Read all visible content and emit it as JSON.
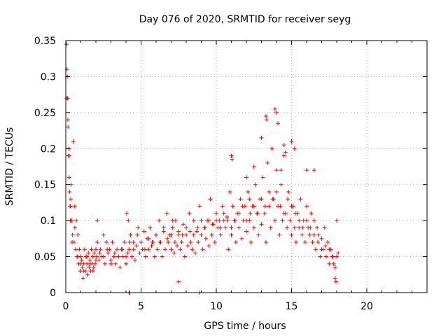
{
  "chart_data": {
    "type": "scatter",
    "title": "Day 076 of 2020, SRMTID for receiver seyg",
    "xlabel": "GPS time / hours",
    "ylabel": "SRMTID / TECUs",
    "xlim": [
      0,
      24
    ],
    "ylim": [
      0,
      0.35
    ],
    "xticks": [
      0,
      5,
      10,
      15,
      20
    ],
    "xtick_labels": [
      "0",
      "5",
      "10",
      "15",
      "20"
    ],
    "yticks": [
      0,
      0.05,
      0.1,
      0.15,
      0.2,
      0.25,
      0.3,
      0.35
    ],
    "ytick_labels": [
      "0",
      "0.05",
      "0.1",
      "0.15",
      "0.2",
      "0.25",
      "0.3",
      "0.35"
    ],
    "grid": true,
    "marker": "+",
    "series": [
      {
        "name": "seyg",
        "color": "#ff0000",
        "x": [
          0.05,
          0.08,
          0.1,
          0.12,
          0.15,
          0.18,
          0.2,
          0.22,
          0.25,
          0.28,
          0.3,
          0.33,
          0.35,
          0.4,
          0.45,
          0.5,
          0.55,
          0.6,
          0.65,
          0.7,
          0.75,
          0.8,
          0.85,
          0.9,
          0.95,
          1.0,
          1.05,
          1.1,
          1.15,
          1.2,
          1.25,
          1.3,
          1.35,
          1.4,
          1.45,
          1.5,
          1.55,
          1.6,
          1.65,
          1.7,
          1.75,
          1.8,
          1.85,
          1.9,
          1.95,
          2.0,
          2.05,
          2.1,
          2.2,
          2.3,
          2.4,
          2.5,
          2.6,
          2.7,
          2.8,
          2.9,
          3.0,
          3.1,
          3.2,
          3.3,
          3.4,
          3.5,
          3.6,
          3.7,
          3.8,
          3.9,
          4.0,
          4.1,
          4.15,
          4.2,
          4.3,
          4.4,
          4.5,
          4.6,
          4.7,
          4.8,
          4.9,
          5.0,
          5.1,
          5.2,
          5.3,
          5.4,
          5.5,
          5.6,
          5.7,
          5.8,
          5.9,
          6.0,
          6.1,
          6.2,
          6.3,
          6.4,
          6.5,
          6.6,
          6.7,
          6.8,
          6.9,
          7.0,
          7.1,
          7.2,
          7.3,
          7.4,
          7.5,
          7.6,
          7.7,
          7.8,
          7.9,
          8.0,
          8.1,
          8.2,
          8.3,
          8.4,
          8.5,
          8.6,
          8.7,
          8.8,
          8.9,
          9.0,
          9.1,
          9.2,
          9.3,
          9.4,
          9.5,
          9.6,
          9.7,
          9.8,
          9.9,
          10.0,
          10.1,
          10.2,
          10.3,
          10.4,
          10.5,
          10.6,
          10.7,
          10.8,
          10.9,
          11.0,
          11.1,
          11.2,
          11.3,
          11.4,
          11.5,
          11.6,
          11.7,
          11.8,
          11.9,
          12.0,
          12.1,
          12.2,
          12.3,
          12.4,
          12.5,
          12.6,
          12.7,
          12.8,
          12.9,
          13.0,
          13.1,
          13.2,
          13.3,
          13.4,
          13.5,
          13.6,
          13.7,
          13.8,
          13.9,
          14.0,
          14.1,
          14.2,
          14.3,
          14.4,
          14.5,
          14.6,
          14.7,
          14.8,
          14.9,
          15.0,
          15.1,
          15.2,
          15.3,
          15.4,
          15.5,
          15.6,
          15.7,
          15.8,
          15.9,
          16.0,
          16.1,
          16.2,
          16.3,
          16.4,
          16.5,
          16.6,
          16.7,
          16.8,
          16.9,
          17.0,
          17.1,
          17.2,
          17.3,
          17.4,
          17.5,
          17.6,
          17.7,
          17.8,
          17.9,
          18.0,
          18.1,
          0.07,
          0.14,
          0.22,
          0.3,
          0.42,
          0.6,
          0.8,
          1.0,
          1.2,
          1.4,
          1.6,
          1.8,
          2.0,
          2.25,
          2.5,
          2.75,
          3.0,
          3.25,
          3.5,
          3.75,
          4.0,
          4.25,
          4.5,
          4.75,
          5.0,
          5.25,
          5.5,
          5.75,
          6.0,
          6.25,
          6.5,
          6.75,
          7.0,
          7.25,
          7.5,
          7.75,
          8.0,
          8.25,
          8.5,
          8.75,
          9.0,
          9.25,
          9.5,
          9.75,
          10.0,
          10.25,
          10.5,
          10.75,
          11.0,
          11.25,
          11.5,
          11.75,
          12.0,
          12.25,
          12.5,
          12.75,
          13.0,
          13.25,
          13.5,
          13.75,
          14.0,
          14.25,
          14.5,
          14.75,
          15.0,
          15.25,
          15.5,
          15.75,
          16.0,
          16.25,
          16.5,
          16.75,
          17.0,
          17.25,
          17.5,
          17.75,
          18.0,
          13.3,
          13.35,
          13.9,
          14.0,
          14.1,
          14.5,
          14.6,
          11.0,
          11.05,
          12.0,
          12.5,
          13.0,
          15.0,
          15.2,
          16.0,
          17.9,
          17.95,
          4.2,
          4.25,
          8.9,
          4.05,
          2.1,
          7.1,
          7.5,
          12.2,
          14.3,
          16.5
        ],
        "y": [
          0.345,
          0.31,
          0.3,
          0.27,
          0.23,
          0.19,
          0.2,
          0.16,
          0.14,
          0.12,
          0.1,
          0.13,
          0.15,
          0.1,
          0.08,
          0.21,
          0.07,
          0.12,
          0.06,
          0.1,
          0.05,
          0.08,
          0.04,
          0.06,
          0.03,
          0.05,
          0.045,
          0.035,
          0.02,
          0.04,
          0.06,
          0.03,
          0.05,
          0.04,
          0.025,
          0.055,
          0.035,
          0.045,
          0.03,
          0.06,
          0.04,
          0.05,
          0.035,
          0.055,
          0.04,
          0.06,
          0.05,
          0.07,
          0.045,
          0.06,
          0.05,
          0.08,
          0.04,
          0.07,
          0.055,
          0.06,
          0.045,
          0.07,
          0.05,
          0.04,
          0.06,
          0.05,
          0.035,
          0.06,
          0.05,
          0.07,
          0.04,
          0.055,
          0.1,
          0.06,
          0.08,
          0.05,
          0.07,
          0.045,
          0.065,
          0.09,
          0.055,
          0.07,
          0.06,
          0.085,
          0.05,
          0.075,
          0.06,
          0.09,
          0.065,
          0.07,
          0.05,
          0.08,
          0.06,
          0.1,
          0.07,
          0.05,
          0.085,
          0.06,
          0.11,
          0.07,
          0.08,
          0.06,
          0.09,
          0.055,
          0.1,
          0.065,
          0.08,
          0.06,
          0.07,
          0.095,
          0.05,
          0.08,
          0.065,
          0.11,
          0.07,
          0.06,
          0.1,
          0.055,
          0.085,
          0.07,
          0.12,
          0.08,
          0.06,
          0.09,
          0.075,
          0.1,
          0.065,
          0.13,
          0.08,
          0.095,
          0.07,
          0.11,
          0.09,
          0.1,
          0.08,
          0.12,
          0.1,
          0.09,
          0.105,
          0.06,
          0.14,
          0.08,
          0.12,
          0.1,
          0.07,
          0.11,
          0.09,
          0.13,
          0.075,
          0.1,
          0.12,
          0.085,
          0.14,
          0.1,
          0.07,
          0.12,
          0.09,
          0.15,
          0.11,
          0.08,
          0.13,
          0.095,
          0.16,
          0.11,
          0.07,
          0.18,
          0.12,
          0.09,
          0.2,
          0.13,
          0.1,
          0.17,
          0.12,
          0.08,
          0.15,
          0.1,
          0.19,
          0.11,
          0.09,
          0.14,
          0.1,
          0.08,
          0.12,
          0.09,
          0.07,
          0.11,
          0.09,
          0.13,
          0.08,
          0.1,
          0.07,
          0.12,
          0.09,
          0.08,
          0.11,
          0.07,
          0.1,
          0.06,
          0.09,
          0.08,
          0.05,
          0.075,
          0.06,
          0.09,
          0.05,
          0.07,
          0.04,
          0.06,
          0.05,
          0.04,
          0.035,
          0.1,
          0.055,
          0.27,
          0.24,
          0.19,
          0.12,
          0.07,
          0.09,
          0.05,
          0.04,
          0.03,
          0.05,
          0.04,
          0.03,
          0.045,
          0.055,
          0.05,
          0.06,
          0.04,
          0.055,
          0.05,
          0.06,
          0.05,
          0.07,
          0.06,
          0.08,
          0.07,
          0.06,
          0.075,
          0.07,
          0.08,
          0.07,
          0.09,
          0.075,
          0.08,
          0.07,
          0.085,
          0.08,
          0.09,
          0.085,
          0.08,
          0.09,
          0.1,
          0.09,
          0.1,
          0.095,
          0.1,
          0.09,
          0.11,
          0.1,
          0.09,
          0.1,
          0.11,
          0.12,
          0.1,
          0.11,
          0.12,
          0.11,
          0.13,
          0.12,
          0.14,
          0.13,
          0.14,
          0.12,
          0.11,
          0.13,
          0.12,
          0.11,
          0.1,
          0.09,
          0.1,
          0.09,
          0.08,
          0.07,
          0.06,
          0.065,
          0.06,
          0.05,
          0.05,
          0.245,
          0.24,
          0.255,
          0.25,
          0.235,
          0.205,
          0.195,
          0.19,
          0.185,
          0.16,
          0.175,
          0.215,
          0.21,
          0.2,
          0.17,
          0.02,
          0.015,
          0.0,
          0.0,
          0.0,
          0.11,
          0.1,
          0.1,
          0.015,
          0.13,
          0.17,
          0.17
        ]
      }
    ]
  }
}
